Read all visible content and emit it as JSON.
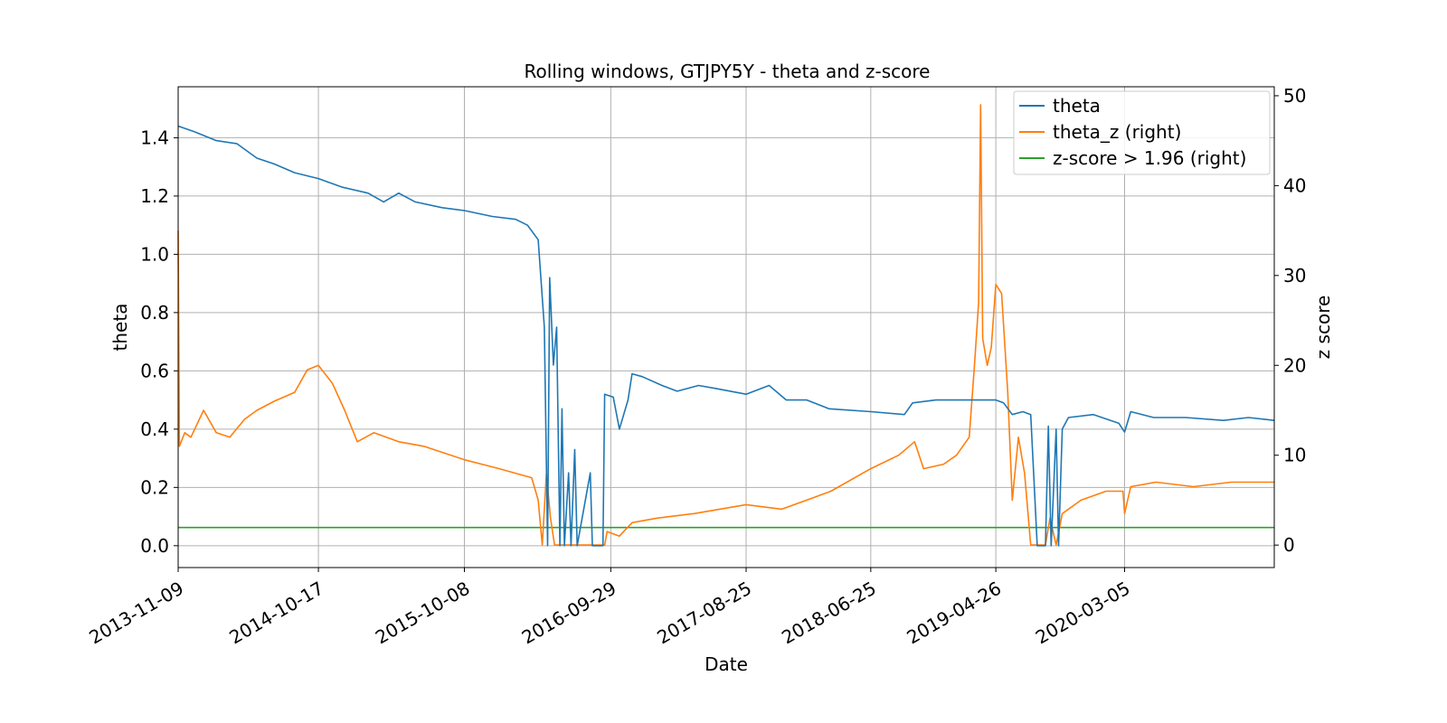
{
  "chart_data": {
    "type": "line",
    "title": "Rolling windows, GTJPY5Y - theta and z-score",
    "xlabel": "Date",
    "ylabel_left": "theta",
    "ylabel_right": "z score",
    "x_tick_labels": [
      "2013-11-09",
      "2014-10-17",
      "2015-10-08",
      "2016-09-29",
      "2017-08-25",
      "2018-06-25",
      "2019-04-26",
      "2020-03-05"
    ],
    "x_range": [
      "2013-11-09",
      "2021-03-05"
    ],
    "y_left_ticks": [
      "0.0",
      "0.2",
      "0.4",
      "0.6",
      "0.8",
      "1.0",
      "1.2",
      "1.4"
    ],
    "y_left_range": [
      -0.075,
      1.575
    ],
    "y_right_ticks": [
      "0",
      "10",
      "20",
      "30",
      "40",
      "50"
    ],
    "y_right_range": [
      -2.5,
      51
    ],
    "grid": true,
    "legend_position": "top-right",
    "series": [
      {
        "name": "theta",
        "axis": "left",
        "color": "#1f77b4",
        "points": [
          [
            "2013-11-09",
            1.44
          ],
          [
            "2013-12-20",
            1.42
          ],
          [
            "2014-02-10",
            1.39
          ],
          [
            "2014-04-01",
            1.38
          ],
          [
            "2014-05-20",
            1.33
          ],
          [
            "2014-07-01",
            1.31
          ],
          [
            "2014-08-20",
            1.28
          ],
          [
            "2014-10-17",
            1.26
          ],
          [
            "2014-12-15",
            1.23
          ],
          [
            "2015-02-15",
            1.21
          ],
          [
            "2015-03-25",
            1.18
          ],
          [
            "2015-05-01",
            1.21
          ],
          [
            "2015-06-10",
            1.18
          ],
          [
            "2015-08-15",
            1.16
          ],
          [
            "2015-10-08",
            1.15
          ],
          [
            "2015-12-15",
            1.13
          ],
          [
            "2016-02-10",
            1.12
          ],
          [
            "2016-03-10",
            1.1
          ],
          [
            "2016-04-05",
            1.05
          ],
          [
            "2016-04-20",
            0.75
          ],
          [
            "2016-04-28",
            0.0
          ],
          [
            "2016-05-03",
            0.92
          ],
          [
            "2016-05-12",
            0.62
          ],
          [
            "2016-05-20",
            0.75
          ],
          [
            "2016-05-28",
            0.0
          ],
          [
            "2016-06-02",
            0.47
          ],
          [
            "2016-06-08",
            0.0
          ],
          [
            "2016-06-18",
            0.25
          ],
          [
            "2016-06-24",
            0.0
          ],
          [
            "2016-07-03",
            0.33
          ],
          [
            "2016-07-09",
            0.0
          ],
          [
            "2016-08-10",
            0.25
          ],
          [
            "2016-08-15",
            0.0
          ],
          [
            "2016-09-10",
            0.0
          ],
          [
            "2016-09-14",
            0.52
          ],
          [
            "2016-10-05",
            0.51
          ],
          [
            "2016-10-20",
            0.4
          ],
          [
            "2016-11-10",
            0.5
          ],
          [
            "2016-11-20",
            0.59
          ],
          [
            "2016-12-15",
            0.58
          ],
          [
            "2017-02-01",
            0.55
          ],
          [
            "2017-03-10",
            0.53
          ],
          [
            "2017-05-01",
            0.55
          ],
          [
            "2017-06-10",
            0.54
          ],
          [
            "2017-08-25",
            0.52
          ],
          [
            "2017-10-20",
            0.55
          ],
          [
            "2017-12-01",
            0.5
          ],
          [
            "2018-01-20",
            0.5
          ],
          [
            "2018-03-15",
            0.47
          ],
          [
            "2018-06-25",
            0.46
          ],
          [
            "2018-09-15",
            0.45
          ],
          [
            "2018-10-05",
            0.49
          ],
          [
            "2018-12-01",
            0.5
          ],
          [
            "2019-02-15",
            0.5
          ],
          [
            "2019-04-26",
            0.5
          ],
          [
            "2019-05-15",
            0.49
          ],
          [
            "2019-06-05",
            0.45
          ],
          [
            "2019-07-01",
            0.46
          ],
          [
            "2019-07-20",
            0.45
          ],
          [
            "2019-08-05",
            0.0
          ],
          [
            "2019-08-25",
            0.0
          ],
          [
            "2019-09-01",
            0.41
          ],
          [
            "2019-09-08",
            0.0
          ],
          [
            "2019-09-20",
            0.4
          ],
          [
            "2019-09-26",
            0.0
          ],
          [
            "2019-10-05",
            0.4
          ],
          [
            "2019-10-20",
            0.44
          ],
          [
            "2019-12-20",
            0.45
          ],
          [
            "2020-02-20",
            0.42
          ],
          [
            "2020-03-05",
            0.39
          ],
          [
            "2020-03-20",
            0.46
          ],
          [
            "2020-05-15",
            0.44
          ],
          [
            "2020-08-01",
            0.44
          ],
          [
            "2020-11-01",
            0.43
          ],
          [
            "2021-01-01",
            0.44
          ],
          [
            "2021-03-05",
            0.43
          ]
        ]
      },
      {
        "name": "theta_z (right)",
        "axis": "right",
        "color": "#ff7f0e",
        "points": [
          [
            "2013-11-09",
            35.0
          ],
          [
            "2013-11-12",
            11.0
          ],
          [
            "2013-11-25",
            12.5
          ],
          [
            "2013-12-10",
            12.0
          ],
          [
            "2014-01-10",
            15.0
          ],
          [
            "2014-02-10",
            12.5
          ],
          [
            "2014-03-15",
            12.0
          ],
          [
            "2014-04-20",
            14.0
          ],
          [
            "2014-05-20",
            15.0
          ],
          [
            "2014-07-01",
            16.0
          ],
          [
            "2014-08-20",
            17.0
          ],
          [
            "2014-09-20",
            19.5
          ],
          [
            "2014-10-17",
            20.0
          ],
          [
            "2014-11-20",
            18.0
          ],
          [
            "2014-12-20",
            15.0
          ],
          [
            "2015-01-20",
            11.5
          ],
          [
            "2015-03-01",
            12.5
          ],
          [
            "2015-05-01",
            11.5
          ],
          [
            "2015-07-01",
            11.0
          ],
          [
            "2015-10-08",
            9.5
          ],
          [
            "2016-01-01",
            8.5
          ],
          [
            "2016-03-20",
            7.5
          ],
          [
            "2016-04-05",
            5.0
          ],
          [
            "2016-04-15",
            0.0
          ],
          [
            "2016-04-25",
            8.0
          ],
          [
            "2016-05-05",
            3.0
          ],
          [
            "2016-05-15",
            0.0
          ],
          [
            "2016-06-15",
            0.0
          ],
          [
            "2016-08-15",
            0.0
          ],
          [
            "2016-09-14",
            0.0
          ],
          [
            "2016-09-20",
            1.5
          ],
          [
            "2016-10-20",
            1.0
          ],
          [
            "2016-11-20",
            2.5
          ],
          [
            "2017-01-20",
            3.0
          ],
          [
            "2017-04-20",
            3.5
          ],
          [
            "2017-08-25",
            4.5
          ],
          [
            "2017-11-20",
            4.0
          ],
          [
            "2018-01-20",
            5.0
          ],
          [
            "2018-03-20",
            6.0
          ],
          [
            "2018-06-25",
            8.5
          ],
          [
            "2018-09-01",
            10.0
          ],
          [
            "2018-10-10",
            11.5
          ],
          [
            "2018-11-01",
            8.5
          ],
          [
            "2018-12-20",
            9.0
          ],
          [
            "2019-01-20",
            10.0
          ],
          [
            "2019-02-20",
            12.0
          ],
          [
            "2019-03-05",
            20.0
          ],
          [
            "2019-03-15",
            27.0
          ],
          [
            "2019-03-20",
            49.0
          ],
          [
            "2019-03-25",
            23.0
          ],
          [
            "2019-04-05",
            20.0
          ],
          [
            "2019-04-15",
            22.0
          ],
          [
            "2019-04-26",
            29.0
          ],
          [
            "2019-05-10",
            28.0
          ],
          [
            "2019-05-25",
            17.0
          ],
          [
            "2019-06-05",
            5.0
          ],
          [
            "2019-06-20",
            12.0
          ],
          [
            "2019-07-05",
            8.0
          ],
          [
            "2019-07-20",
            0.0
          ],
          [
            "2019-08-25",
            0.0
          ],
          [
            "2019-09-05",
            3.0
          ],
          [
            "2019-09-20",
            0.0
          ],
          [
            "2019-10-05",
            3.5
          ],
          [
            "2019-11-20",
            5.0
          ],
          [
            "2020-01-20",
            6.0
          ],
          [
            "2020-03-01",
            6.0
          ],
          [
            "2020-03-05",
            3.5
          ],
          [
            "2020-03-20",
            6.5
          ],
          [
            "2020-05-20",
            7.0
          ],
          [
            "2020-08-20",
            6.5
          ],
          [
            "2020-11-20",
            7.0
          ],
          [
            "2021-03-05",
            7.0
          ]
        ]
      },
      {
        "name": "z-score > 1.96 (right)",
        "axis": "right",
        "color": "#2ca02c",
        "points": [
          [
            "2013-11-09",
            1.96
          ],
          [
            "2021-03-05",
            1.96
          ]
        ]
      }
    ]
  }
}
